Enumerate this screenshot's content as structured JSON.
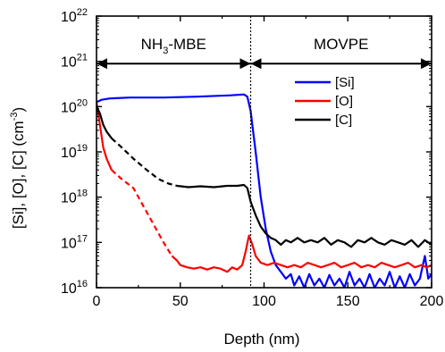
{
  "chart_data": {
    "type": "line",
    "xlabel": "Depth (nm)",
    "ylabel": "[Si], [O], [C] (cm",
    "ylabel_sup": "-3",
    "ylabel_close": ")",
    "xlim": [
      0,
      200
    ],
    "ylim_exp": [
      16,
      22
    ],
    "y_scale": "log",
    "grid": false,
    "legend_position": "top-right",
    "x_ticks": [
      0,
      50,
      100,
      150,
      200
    ],
    "y_tick_exponents": [
      16,
      17,
      18,
      19,
      20,
      21,
      22
    ],
    "y_tick_base": "10",
    "regions": [
      {
        "label_main": "NH",
        "label_sub": "3",
        "label_rest": "-MBE",
        "x_start": 0,
        "x_end": 92
      },
      {
        "label_main": "MOVPE",
        "label_sub": "",
        "label_rest": "",
        "x_start": 92,
        "x_end": 200
      }
    ],
    "region_arrow_y_exp": 20.95,
    "divider_x": 92,
    "series": [
      {
        "name": "[Si]",
        "color": "#0000ff",
        "segments": [
          {
            "style": "solid",
            "points": [
              [
                0,
                20.1
              ],
              [
                3,
                20.15
              ],
              [
                8,
                20.18
              ],
              [
                20,
                20.2
              ],
              [
                40,
                20.2
              ],
              [
                60,
                20.22
              ],
              [
                80,
                20.25
              ],
              [
                88,
                20.27
              ],
              [
                90,
                20.22
              ],
              [
                92,
                19.9
              ],
              [
                95,
                19.0
              ],
              [
                98,
                18.0
              ],
              [
                101,
                17.3
              ],
              [
                104,
                16.8
              ],
              [
                107,
                16.5
              ],
              [
                110,
                16.35
              ],
              [
                113,
                16.2
              ],
              [
                116,
                16.3
              ],
              [
                118,
                16.05
              ],
              [
                121,
                16.25
              ],
              [
                124,
                16.0
              ],
              [
                127,
                16.3
              ],
              [
                130,
                16.05
              ],
              [
                133,
                16.2
              ],
              [
                136,
                16.0
              ],
              [
                139,
                16.28
              ],
              [
                142,
                16.05
              ],
              [
                145,
                16.2
              ],
              [
                148,
                16.0
              ],
              [
                151,
                16.35
              ],
              [
                154,
                16.05
              ],
              [
                157,
                16.2
              ],
              [
                160,
                16.0
              ],
              [
                163,
                16.3
              ],
              [
                166,
                16.0
              ],
              [
                169,
                16.2
              ],
              [
                172,
                16.05
              ],
              [
                175,
                16.35
              ],
              [
                178,
                16.0
              ],
              [
                181,
                16.25
              ],
              [
                184,
                16.0
              ],
              [
                187,
                16.3
              ],
              [
                190,
                16.05
              ],
              [
                193,
                16.2
              ],
              [
                196,
                16.7
              ],
              [
                198,
                16.2
              ],
              [
                200,
                16.3
              ]
            ]
          }
        ]
      },
      {
        "name": "[O]",
        "color": "#ff0000",
        "segments": [
          {
            "style": "solid",
            "points": [
              [
                0,
                20.1
              ],
              [
                2,
                19.6
              ],
              [
                4,
                19.1
              ],
              [
                6,
                18.85
              ],
              [
                9,
                18.6
              ]
            ]
          },
          {
            "style": "dashed",
            "points": [
              [
                9,
                18.6
              ],
              [
                15,
                18.4
              ],
              [
                22,
                18.2
              ],
              [
                28,
                17.8
              ],
              [
                34,
                17.4
              ],
              [
                40,
                17.0
              ],
              [
                45,
                16.7
              ]
            ]
          },
          {
            "style": "solid",
            "points": [
              [
                45,
                16.7
              ],
              [
                48,
                16.6
              ],
              [
                50,
                16.5
              ],
              [
                54,
                16.45
              ],
              [
                58,
                16.42
              ],
              [
                62,
                16.45
              ],
              [
                66,
                16.4
              ],
              [
                70,
                16.45
              ],
              [
                74,
                16.42
              ],
              [
                78,
                16.35
              ],
              [
                81,
                16.45
              ],
              [
                84,
                16.4
              ],
              [
                87,
                16.5
              ],
              [
                89,
                16.8
              ],
              [
                91,
                17.15
              ],
              [
                93,
                16.95
              ],
              [
                95,
                16.7
              ],
              [
                98,
                16.55
              ],
              [
                102,
                16.5
              ],
              [
                106,
                16.55
              ],
              [
                110,
                16.5
              ],
              [
                114,
                16.45
              ],
              [
                118,
                16.5
              ],
              [
                122,
                16.45
              ],
              [
                126,
                16.55
              ],
              [
                130,
                16.5
              ],
              [
                134,
                16.45
              ],
              [
                138,
                16.5
              ],
              [
                142,
                16.55
              ],
              [
                146,
                16.45
              ],
              [
                150,
                16.5
              ],
              [
                154,
                16.55
              ],
              [
                158,
                16.45
              ],
              [
                162,
                16.5
              ],
              [
                166,
                16.45
              ],
              [
                170,
                16.55
              ],
              [
                174,
                16.5
              ],
              [
                178,
                16.45
              ],
              [
                182,
                16.5
              ],
              [
                186,
                16.55
              ],
              [
                190,
                16.45
              ],
              [
                194,
                16.5
              ],
              [
                197,
                16.45
              ],
              [
                200,
                16.5
              ]
            ]
          }
        ]
      },
      {
        "name": "[C]",
        "color": "#000000",
        "segments": [
          {
            "style": "solid",
            "points": [
              [
                0,
                20.0
              ],
              [
                2,
                19.85
              ],
              [
                4,
                19.6
              ],
              [
                6,
                19.45
              ],
              [
                9,
                19.3
              ]
            ]
          },
          {
            "style": "dashed",
            "points": [
              [
                9,
                19.3
              ],
              [
                15,
                19.1
              ],
              [
                22,
                18.85
              ],
              [
                30,
                18.6
              ],
              [
                37,
                18.4
              ],
              [
                43,
                18.3
              ],
              [
                48,
                18.25
              ]
            ]
          },
          {
            "style": "solid",
            "points": [
              [
                48,
                18.25
              ],
              [
                55,
                18.22
              ],
              [
                62,
                18.24
              ],
              [
                70,
                18.22
              ],
              [
                78,
                18.25
              ],
              [
                84,
                18.25
              ],
              [
                88,
                18.27
              ],
              [
                90,
                18.2
              ],
              [
                92,
                17.9
              ],
              [
                95,
                17.6
              ],
              [
                98,
                17.35
              ],
              [
                101,
                17.2
              ],
              [
                104,
                17.1
              ],
              [
                107,
                17.05
              ],
              [
                110,
                16.95
              ],
              [
                113,
                17.05
              ],
              [
                116,
                17.0
              ],
              [
                120,
                17.1
              ],
              [
                124,
                17.0
              ],
              [
                128,
                17.05
              ],
              [
                132,
                17.0
              ],
              [
                136,
                17.1
              ],
              [
                140,
                16.95
              ],
              [
                144,
                17.05
              ],
              [
                148,
                17.0
              ],
              [
                152,
                16.9
              ],
              [
                156,
                17.05
              ],
              [
                160,
                17.0
              ],
              [
                164,
                17.1
              ],
              [
                168,
                17.0
              ],
              [
                172,
                16.95
              ],
              [
                176,
                17.05
              ],
              [
                180,
                17.0
              ],
              [
                184,
                16.95
              ],
              [
                188,
                17.05
              ],
              [
                192,
                16.9
              ],
              [
                196,
                17.05
              ],
              [
                200,
                16.95
              ]
            ]
          }
        ]
      }
    ]
  }
}
